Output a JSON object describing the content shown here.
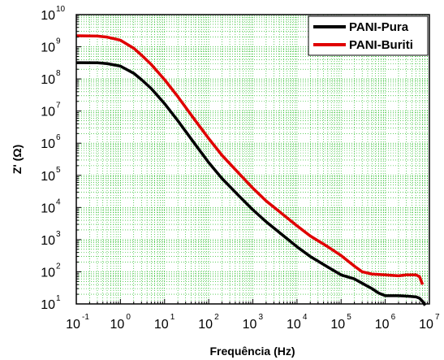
{
  "chart_data": {
    "type": "line",
    "title": "",
    "xlabel": "Frequência (Hz)",
    "ylabel": "Z' (Ω)",
    "x_scale": "log",
    "y_scale": "log",
    "xlim": [
      0.1,
      10000000
    ],
    "ylim": [
      10,
      10000000000
    ],
    "x_ticks": [
      {
        "base": "10",
        "exp": "-1",
        "value": 0.1
      },
      {
        "base": "10",
        "exp": "0",
        "value": 1
      },
      {
        "base": "10",
        "exp": "1",
        "value": 10
      },
      {
        "base": "10",
        "exp": "2",
        "value": 100
      },
      {
        "base": "10",
        "exp": "3",
        "value": 1000
      },
      {
        "base": "10",
        "exp": "4",
        "value": 10000
      },
      {
        "base": "10",
        "exp": "5",
        "value": 100000
      },
      {
        "base": "10",
        "exp": "6",
        "value": 1000000
      },
      {
        "base": "10",
        "exp": "7",
        "value": 10000000
      }
    ],
    "y_ticks": [
      {
        "base": "10",
        "exp": "1",
        "value": 10
      },
      {
        "base": "10",
        "exp": "2",
        "value": 100
      },
      {
        "base": "10",
        "exp": "3",
        "value": 1000
      },
      {
        "base": "10",
        "exp": "4",
        "value": 10000
      },
      {
        "base": "10",
        "exp": "5",
        "value": 100000
      },
      {
        "base": "10",
        "exp": "6",
        "value": 1000000
      },
      {
        "base": "10",
        "exp": "7",
        "value": 10000000
      },
      {
        "base": "10",
        "exp": "8",
        "value": 100000000
      },
      {
        "base": "10",
        "exp": "9",
        "value": 1000000000
      },
      {
        "base": "10",
        "exp": "10",
        "value": 10000000000
      }
    ],
    "grid": true,
    "grid_color": "#00b000",
    "legend_position": "top-right",
    "series": [
      {
        "name": "PANI-Pura",
        "color": "#000000",
        "points": [
          [
            0.1,
            320000000
          ],
          [
            0.3,
            318000000
          ],
          [
            0.5,
            300000000
          ],
          [
            1,
            250000000
          ],
          [
            2,
            150000000
          ],
          [
            3,
            95000000
          ],
          [
            5,
            50000000
          ],
          [
            10,
            17000000
          ],
          [
            20,
            5000000
          ],
          [
            50,
            900000
          ],
          [
            100,
            250000
          ],
          [
            200,
            80000
          ],
          [
            500,
            22000
          ],
          [
            1000,
            8500
          ],
          [
            2000,
            3600
          ],
          [
            5000,
            1300
          ],
          [
            10000,
            600
          ],
          [
            20000,
            300
          ],
          [
            50000,
            140
          ],
          [
            100000,
            80
          ],
          [
            200000,
            60
          ],
          [
            300000,
            44
          ],
          [
            500000,
            30
          ],
          [
            700000,
            22
          ],
          [
            1000000,
            18
          ],
          [
            1500000,
            18
          ],
          [
            2000000,
            18
          ],
          [
            3000000,
            17.5
          ],
          [
            4000000,
            17
          ],
          [
            5000000,
            16.5
          ],
          [
            6000000,
            15
          ],
          [
            7000000,
            12
          ],
          [
            8000000,
            9
          ]
        ]
      },
      {
        "name": "PANI-Buriti",
        "color": "#e00000",
        "points": [
          [
            0.1,
            2200000000
          ],
          [
            0.3,
            2150000000
          ],
          [
            0.5,
            2000000000
          ],
          [
            1,
            1600000000
          ],
          [
            2,
            900000000
          ],
          [
            3,
            550000000
          ],
          [
            5,
            280000000
          ],
          [
            10,
            95000000
          ],
          [
            20,
            28000000
          ],
          [
            50,
            5000000
          ],
          [
            100,
            1400000
          ],
          [
            200,
            420000
          ],
          [
            500,
            110000
          ],
          [
            1000,
            40000
          ],
          [
            2000,
            16000
          ],
          [
            5000,
            5800
          ],
          [
            10000,
            2700
          ],
          [
            20000,
            1300
          ],
          [
            50000,
            600
          ],
          [
            100000,
            320
          ],
          [
            200000,
            150
          ],
          [
            300000,
            100
          ],
          [
            500000,
            85
          ],
          [
            1000000,
            80
          ],
          [
            2000000,
            75
          ],
          [
            3000000,
            80
          ],
          [
            5000000,
            80
          ],
          [
            6000000,
            70
          ],
          [
            7000000,
            40
          ]
        ]
      }
    ]
  }
}
